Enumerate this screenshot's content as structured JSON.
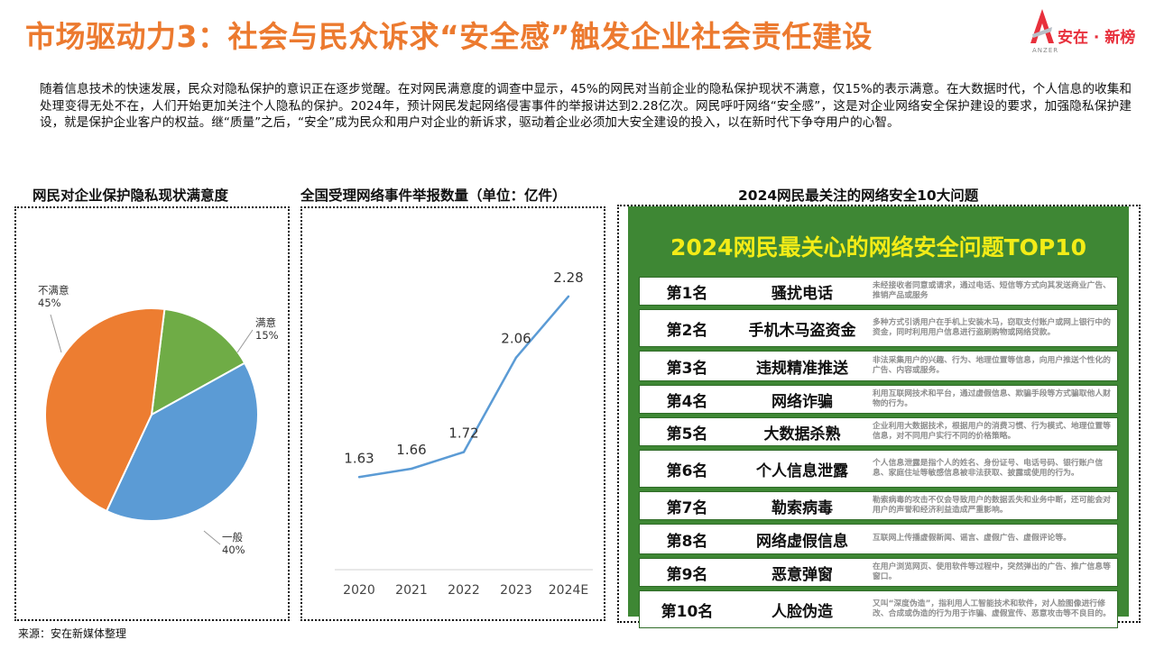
{
  "title": "市场驱动力3：社会与民众诉求“安全感”触发企业社会责任建设",
  "logo": {
    "text": "安在 · 新榜",
    "sub": "ANZER"
  },
  "intro": "随着信息技术的快速发展，民众对隐私保护的意识正在逐步觉醒。在对网民满意度的调查中显示，45%的网民对当前企业的隐私保护现状不满意，仅15%的表示满意。在大数据时代，个人信息的收集和处理变得无处不在，人们开始更加关注个人隐私的保护。2024年，预计网民发起网络侵害事件的举报讲达到2.28亿次。网民呼吁网络“安全感”，这是对企业网络安全保护建设的要求，加强隐私保护建设，就是保护企业客户的权益。继“质量”之后，“安全”成为民众和用户对企业的新诉求，驱动着企业必须加大安全建设的投入，以在新时代下争夺用户的心智。",
  "panels": {
    "pie_title": "网民对企业保护隐私现状满意度",
    "line_title": "全国受理网络事件举报数量（单位：亿件）",
    "top10_title": "2024网民最关注的网络安全10大问题"
  },
  "chart_data": [
    {
      "type": "pie",
      "title": "网民对企业保护隐私现状满意度",
      "categories": [
        "满意",
        "一般",
        "不满意"
      ],
      "values": [
        15,
        40,
        45
      ],
      "labels": [
        "15%",
        "40%",
        "45%"
      ],
      "colors": [
        "#6fac46",
        "#5b9bd5",
        "#ed7d31"
      ]
    },
    {
      "type": "line",
      "title": "全国受理网络事件举报数量（单位：亿件）",
      "x": [
        "2020",
        "2021",
        "2022",
        "2023",
        "2024E"
      ],
      "series": [
        {
          "values": [
            1.63,
            1.66,
            1.72,
            2.06,
            2.28
          ],
          "labels": [
            "1.63",
            "1.66",
            "1.72",
            "2.06",
            "2.28"
          ],
          "color": "#5b9bd5"
        }
      ],
      "ylim": [
        1.3,
        2.5
      ],
      "grid": false
    }
  ],
  "top10": {
    "heading": "2024网民最关心的网络安全问题TOP10",
    "rows": [
      {
        "rank": "第1名",
        "name": "骚扰电话",
        "desc": "未经接收者同意或请求，通过电话、短信等方式向其发送商业广告、推销产品或服务"
      },
      {
        "rank": "第2名",
        "name": "手机木马盗资金",
        "desc": "多种方式引诱用户在手机上安装木马，窃取支付账户或网上银行中的资金，同时利用用户信息进行盗刷购物或网络贷款。"
      },
      {
        "rank": "第3名",
        "name": "违规精准推送",
        "desc": "非法采集用户的兴趣、行为、地理位置等信息，向用户推送个性化的广告、内容或服务。"
      },
      {
        "rank": "第4名",
        "name": "网络诈骗",
        "desc": "利用互联网技术和平台，通过虚假信息、欺骗手段等方式骗取他人财物的行为。"
      },
      {
        "rank": "第5名",
        "name": "大数据杀熟",
        "desc": "企业利用大数据技术，根据用户的消费习惯、行为模式、地理位置等信息，对不同用户实行不同的价格策略。"
      },
      {
        "rank": "第6名",
        "name": "个人信息泄露",
        "desc": "个人信息泄露是指个人的姓名、身份证号、电话号码、银行账户信息、家庭住址等敏感信息被非法获取、披露或使用的行为。"
      },
      {
        "rank": "第7名",
        "name": "勒索病毒",
        "desc": "勒索病毒的攻击不仅会导致用户的数据丢失和业务中断，还可能会对用户的声誉和经济利益造成严重影响。"
      },
      {
        "rank": "第8名",
        "name": "网络虚假信息",
        "desc": "互联网上传播虚假新闻、谣言、虚假广告、虚假评论等。"
      },
      {
        "rank": "第9名",
        "name": "恶意弹窗",
        "desc": "在用户浏览网页、使用软件等过程中，突然弹出的广告、推广信息等窗口。"
      },
      {
        "rank": "第10名",
        "name": "人脸伪造",
        "desc": "又叫“深度伪造”，指利用人工智能技术和软件，对人脸图像进行修改、合成或伪造的行为用于诈骗、虚假宣传、恶意攻击等不良目的。"
      }
    ]
  },
  "source": "来源：安在新媒体整理"
}
